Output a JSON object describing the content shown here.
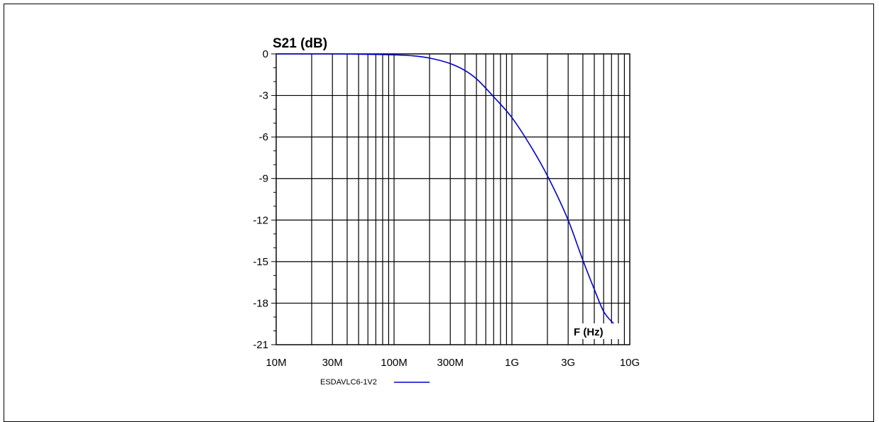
{
  "chart_data": {
    "type": "line",
    "title": "",
    "ylabel": "S21 (dB)",
    "xlabel": "F (Hz)",
    "x_scale": "log",
    "xlim": [
      10000000,
      10000000000
    ],
    "ylim": [
      -21,
      0
    ],
    "x_ticks": [
      {
        "value": 10000000,
        "label": "10M"
      },
      {
        "value": 30000000,
        "label": "30M"
      },
      {
        "value": 100000000,
        "label": "100M"
      },
      {
        "value": 300000000,
        "label": "300M"
      },
      {
        "value": 1000000000,
        "label": "1G"
      },
      {
        "value": 3000000000,
        "label": "3G"
      },
      {
        "value": 10000000000,
        "label": "10G"
      }
    ],
    "y_ticks": [
      {
        "value": 0,
        "label": "0"
      },
      {
        "value": -3,
        "label": "-3"
      },
      {
        "value": -6,
        "label": "-6"
      },
      {
        "value": -9,
        "label": "-9"
      },
      {
        "value": -12,
        "label": "-12"
      },
      {
        "value": -15,
        "label": "-15"
      },
      {
        "value": -18,
        "label": "-18"
      },
      {
        "value": -21,
        "label": "-21"
      }
    ],
    "grid": true,
    "legend_position": "bottom",
    "series": [
      {
        "name": "ESDAVLC6-1V2",
        "color": "#0000cc",
        "x": [
          10000000,
          30000000,
          50000000,
          100000000,
          150000000,
          200000000,
          300000000,
          400000000,
          500000000,
          700000000,
          1000000000,
          1500000000,
          2000000000,
          3000000000,
          4000000000,
          5000000000,
          6000000000,
          7500000000
        ],
        "y": [
          0,
          0,
          -0.02,
          -0.07,
          -0.15,
          -0.3,
          -0.7,
          -1.2,
          -1.8,
          -3.1,
          -4.6,
          -6.9,
          -8.8,
          -12.0,
          -14.9,
          -17.0,
          -18.6,
          -19.6
        ]
      }
    ]
  }
}
